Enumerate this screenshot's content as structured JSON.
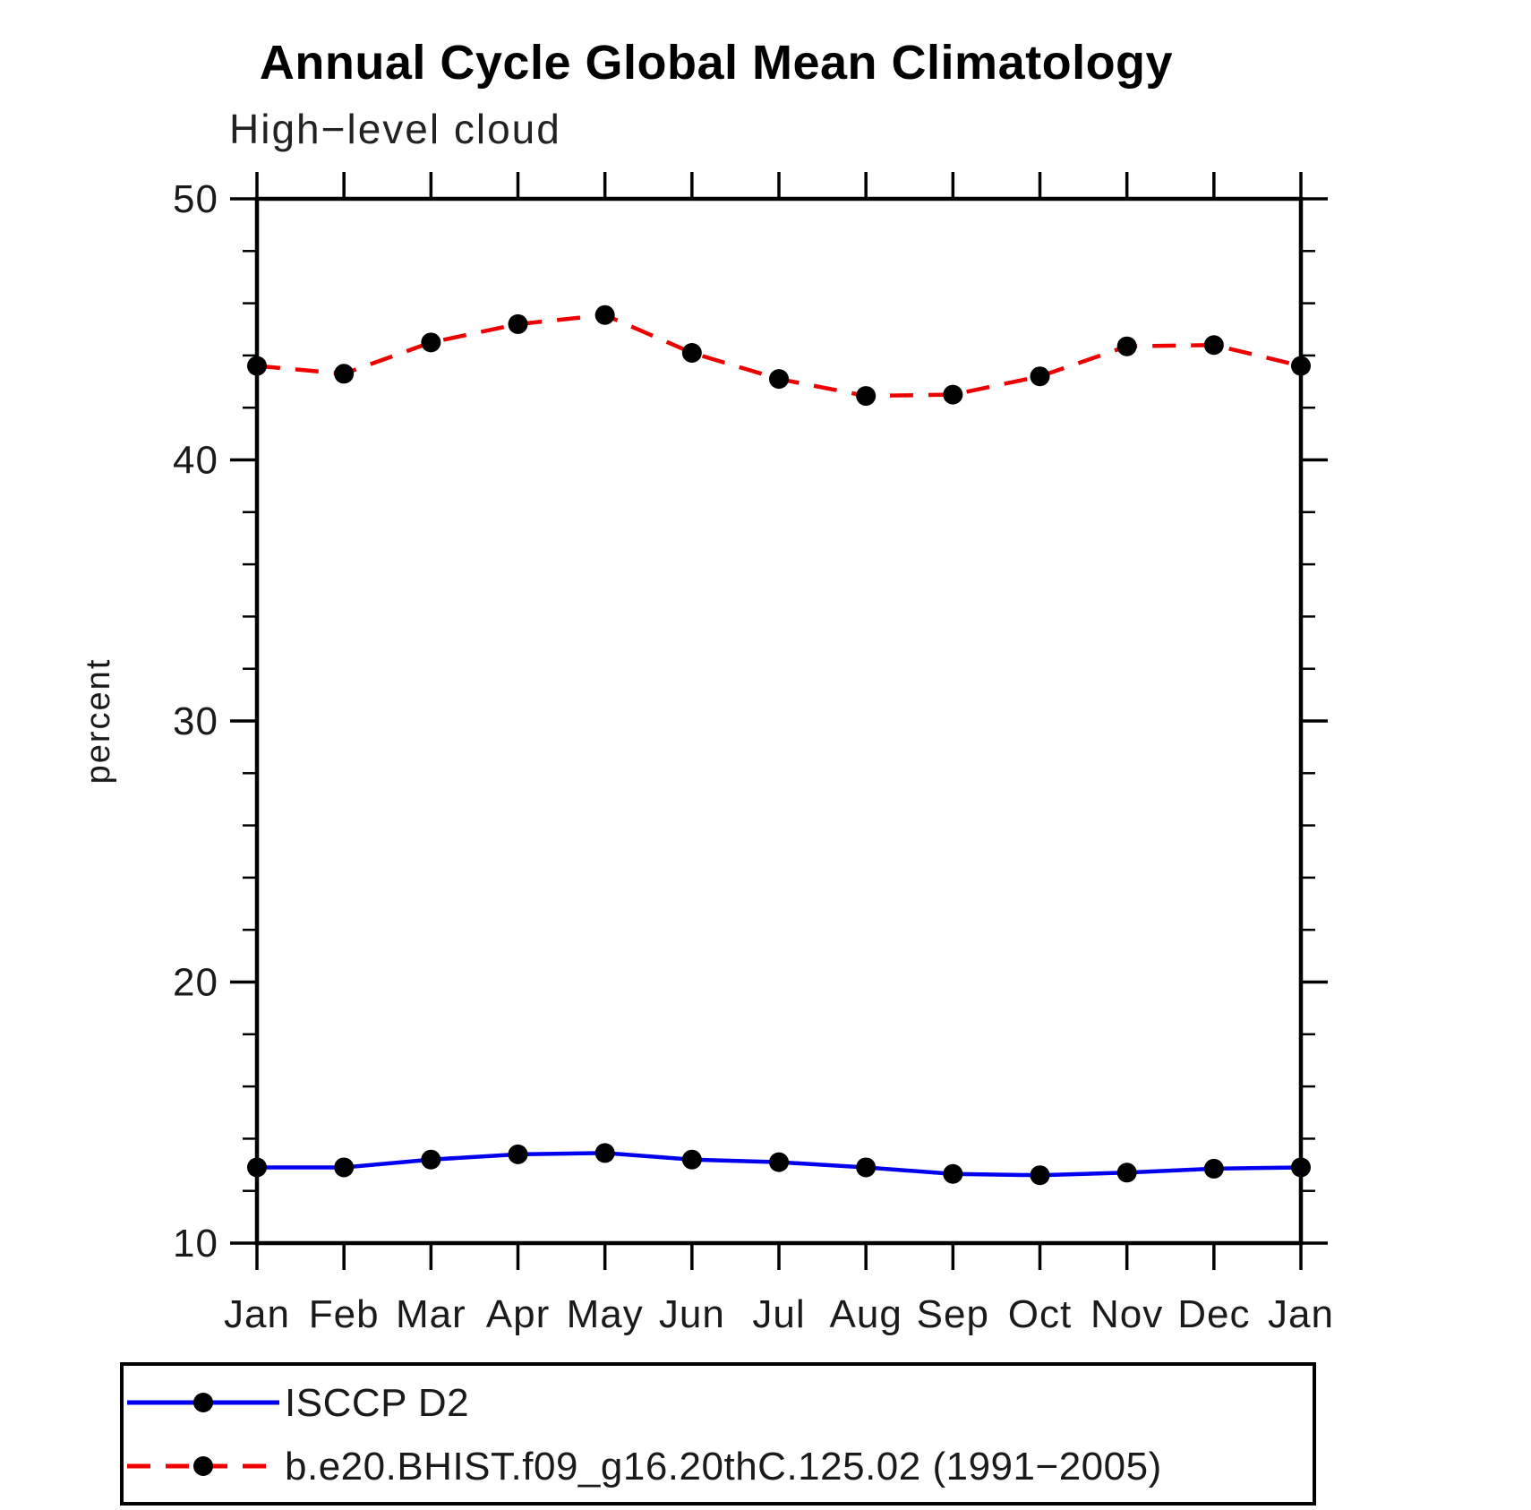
{
  "chart_data": {
    "type": "line",
    "title": "Annual Cycle Global Mean Climatology",
    "subtitle": "High−level cloud",
    "ylabel": "percent",
    "xlabel": "",
    "categories": [
      "Jan",
      "Feb",
      "Mar",
      "Apr",
      "May",
      "Jun",
      "Jul",
      "Aug",
      "Sep",
      "Oct",
      "Nov",
      "Dec",
      "Jan"
    ],
    "ylim": [
      10,
      50
    ],
    "yticks": [
      10,
      20,
      30,
      40,
      50
    ],
    "y_minor_step": 2,
    "grid": "off",
    "legend_position": "bottom-left-box",
    "marker": "filled-circle",
    "marker_color": "#000000",
    "series": [
      {
        "name": "ISCCP D2",
        "color": "#0000ee",
        "style": "solid",
        "values": [
          12.9,
          12.9,
          13.2,
          13.4,
          13.45,
          13.2,
          13.1,
          12.9,
          12.65,
          12.6,
          12.7,
          12.85,
          12.9
        ]
      },
      {
        "name": "b.e20.BHIST.f09_g16.20thC.125.02 (1991−2005)",
        "color": "#ee0000",
        "style": "dashed",
        "values": [
          43.6,
          43.3,
          44.5,
          45.2,
          45.55,
          44.1,
          43.1,
          42.45,
          42.5,
          43.2,
          44.35,
          44.4,
          43.6
        ]
      }
    ]
  }
}
